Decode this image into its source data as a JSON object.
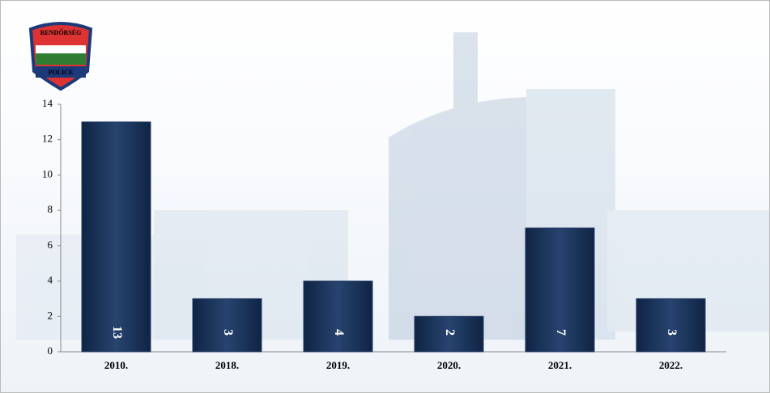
{
  "logo": {
    "top": "RENDŐRSÉG",
    "bottom": "POLICE"
  },
  "chart_data": {
    "type": "bar",
    "categories": [
      "2010.",
      "2018.",
      "2019.",
      "2020.",
      "2021.",
      "2022."
    ],
    "values": [
      13,
      3,
      4,
      2,
      7,
      3
    ],
    "color": "#1f3864",
    "ylim": [
      0,
      14
    ],
    "yticks": [
      0,
      2,
      4,
      6,
      8,
      10,
      12,
      14
    ],
    "grid": false
  }
}
